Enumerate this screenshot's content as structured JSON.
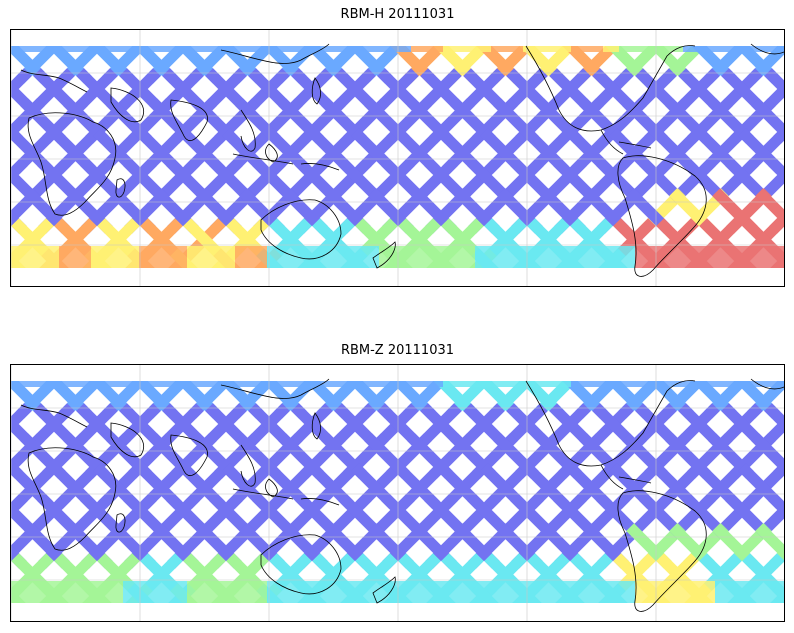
{
  "figure": {
    "panels": [
      {
        "title": "RBM-H 20111031",
        "variant": "H"
      },
      {
        "title": "RBM-Z 20111031",
        "variant": "Z"
      }
    ]
  },
  "colors": {
    "low": "#6464f0",
    "mid_low": "#5aa0ff",
    "mid": "#5ae6f0",
    "mid_high": "#9bf58c",
    "high": "#fff064",
    "very_high": "#ffa050",
    "max": "#e86464",
    "coast": "#000000",
    "grid": "#c8c8c8"
  }
}
